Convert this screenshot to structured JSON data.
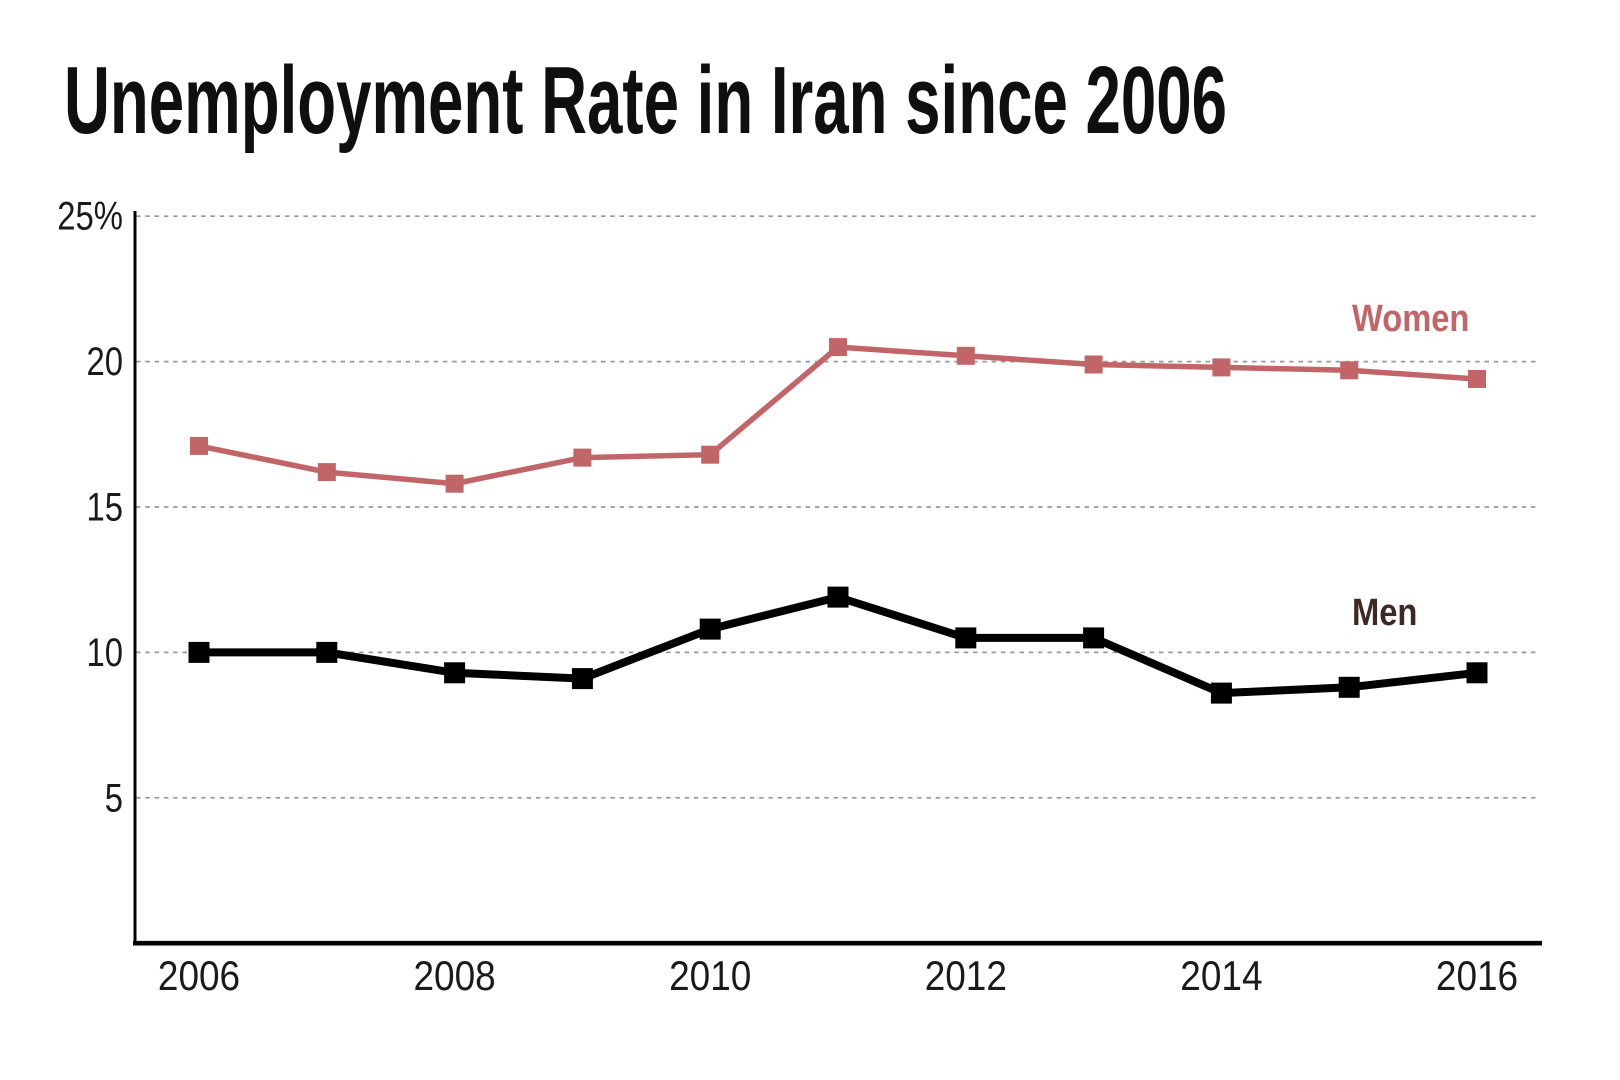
{
  "page": {
    "background": "#ffffff"
  },
  "colors": {
    "title_text": "#0f0f0f",
    "tick_text": "#1a1a1a",
    "axis_line": "#000000",
    "gridline": "#999999",
    "women_series": "#c26568",
    "men_series": "#000000",
    "men_label": "#3d2823"
  },
  "chart_data": {
    "type": "line",
    "title": "Unemployment Rate in Iran since 2006",
    "x": [
      2006,
      2007,
      2008,
      2009,
      2010,
      2011,
      2012,
      2013,
      2014,
      2015,
      2016
    ],
    "x_tick_labels": [
      "2006",
      "2008",
      "2010",
      "2012",
      "2014",
      "2016"
    ],
    "y_tick_labels": [
      "25%",
      "20",
      "15",
      "10",
      "5"
    ],
    "y_tick_values": [
      25,
      20,
      15,
      10,
      5
    ],
    "ylim": [
      0,
      25
    ],
    "xlabel": "",
    "ylabel": "",
    "grid": "horizontal-dashed",
    "legend_position": "inline-right-of-lines",
    "marker": "square",
    "series": [
      {
        "name": "Women",
        "color": "#c26568",
        "label_color": "#c26568",
        "values": [
          17.1,
          16.2,
          15.8,
          16.7,
          16.8,
          20.5,
          20.2,
          19.9,
          19.8,
          19.7,
          19.4
        ]
      },
      {
        "name": "Men",
        "color": "#000000",
        "label_color": "#3d2823",
        "values": [
          10.0,
          10.0,
          9.3,
          9.1,
          10.8,
          11.9,
          10.5,
          10.5,
          8.6,
          8.8,
          9.3
        ]
      }
    ]
  }
}
